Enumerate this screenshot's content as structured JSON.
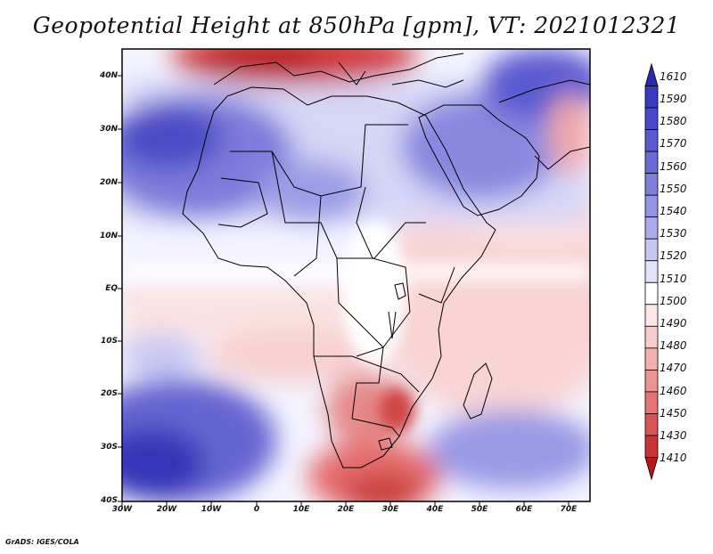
{
  "title": "Geopotential Height at 850hPa [gpm], VT: 2021012321",
  "credit": "GrADS: IGES/COLA",
  "lat_labels": [
    "40N",
    "30N",
    "20N",
    "10N",
    "EQ",
    "10S",
    "20S",
    "30S",
    "40S"
  ],
  "lon_labels": [
    "30W",
    "20W",
    "10W",
    "0",
    "10E",
    "20E",
    "30E",
    "40E",
    "50E",
    "60E",
    "70E"
  ],
  "colorbar": {
    "labels_top_to_bottom": [
      "1610",
      "1590",
      "1580",
      "1570",
      "1560",
      "1550",
      "1540",
      "1530",
      "1520",
      "1510",
      "1500",
      "1490",
      "1480",
      "1470",
      "1460",
      "1450",
      "1430",
      "1410"
    ],
    "colors_top_to_bottom": [
      "#2b2bb0",
      "#3a3ac0",
      "#4a4ac8",
      "#5a5ad0",
      "#6a6ad6",
      "#7e7edd",
      "#9494e4",
      "#ababec",
      "#c6c6f3",
      "#e2e2fa",
      "#ffffff",
      "#fce6e6",
      "#f8cccc",
      "#f2b0b0",
      "#eb9393",
      "#e47575",
      "#d85555",
      "#c93535",
      "#b21a1a"
    ]
  }
}
